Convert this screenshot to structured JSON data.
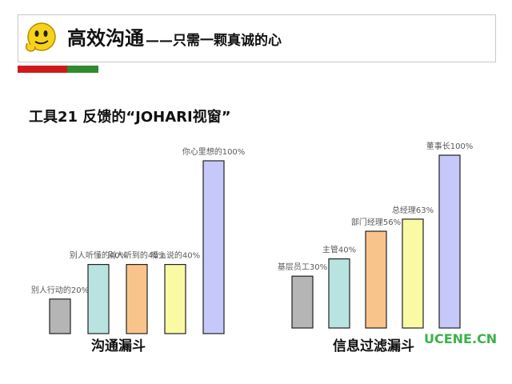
{
  "header": {
    "title_main": "高效沟通",
    "title_sub": "——只需一颗真诚的心"
  },
  "section_title": "工具21 反馈的“JOHARI视窗”",
  "watermark": "UCENE.CN",
  "chart_data": [
    {
      "type": "bar",
      "xlabel": "沟通漏斗",
      "categories": [
        "别人行动的20%",
        "别人听懂的40%",
        "别人听到的40%",
        "嘴上说的40%",
        "你心里想的100%"
      ],
      "values": [
        20,
        40,
        40,
        40,
        100
      ],
      "colors": [
        "#b5b5b5",
        "#b9e3e1",
        "#f9c48c",
        "#fbfaa4",
        "#c6c8fa"
      ],
      "label_colors": [
        "#5a5a5a",
        "#5a5a5a",
        "#5a5a5a",
        "#5a5a5a",
        "#5a5a5a"
      ]
    },
    {
      "type": "bar",
      "xlabel": "信息过滤漏斗",
      "categories": [
        "基层员工30%",
        "主管40%",
        "部门经理56%",
        "总经理63%",
        "董事长100%"
      ],
      "values": [
        30,
        40,
        56,
        63,
        100
      ],
      "colors": [
        "#b5b5b5",
        "#b9e3e1",
        "#f9c48c",
        "#fbfaa4",
        "#c6c8fa"
      ],
      "label_colors": [
        "#5a5a5a",
        "#5a5a5a",
        "#5a5a5a",
        "#5a5a5a",
        "#5a5a5a"
      ]
    }
  ]
}
